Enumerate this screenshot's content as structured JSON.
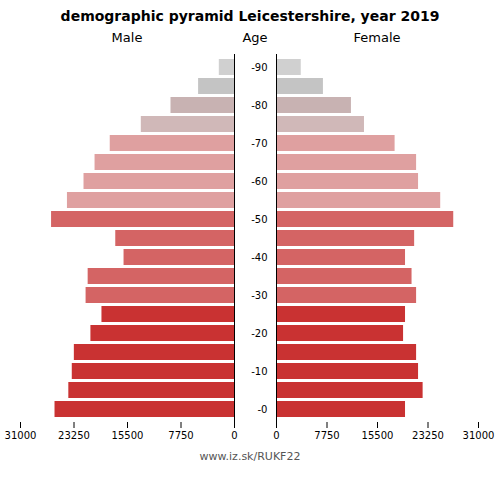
{
  "chart_data": {
    "type": "pyramid",
    "title": "demographic pyramid Leicestershire, year 2019",
    "ylabel": "Age",
    "categories": [
      "-0",
      null,
      "-10",
      null,
      "-20",
      null,
      "-30",
      null,
      "-40",
      null,
      "-50",
      null,
      "-60",
      null,
      "-70",
      null,
      "-80",
      null,
      "-90"
    ],
    "series": [
      {
        "name": "Male",
        "colors": [
          "#c93232",
          "#c93232",
          "#c93232",
          "#c93232",
          "#c93232",
          "#c93232",
          "#d46464",
          "#d46464",
          "#d46464",
          "#d46464",
          "#d46464",
          "#dfa0a0",
          "#dfa0a0",
          "#dfa0a0",
          "#dfa0a0",
          "#d0b8b8",
          "#c8b2b2",
          "#c4c4c4",
          "#d0d0d0"
        ],
        "values": [
          26000,
          24000,
          23500,
          23200,
          20800,
          19200,
          21500,
          21200,
          16000,
          17200,
          26500,
          24200,
          21800,
          20200,
          18000,
          13500,
          9200,
          5200,
          2200
        ]
      },
      {
        "name": "Female",
        "colors": [
          "#c93232",
          "#c93232",
          "#c93232",
          "#c93232",
          "#c93232",
          "#c93232",
          "#d46464",
          "#d46464",
          "#d46464",
          "#d46464",
          "#d46464",
          "#dfa0a0",
          "#dfa0a0",
          "#dfa0a0",
          "#dfa0a0",
          "#d0b8b8",
          "#c8b2b2",
          "#c4c4c4",
          "#d0d0d0"
        ],
        "values": [
          19800,
          22500,
          21800,
          21500,
          19500,
          19800,
          21500,
          20800,
          19800,
          21200,
          27200,
          25200,
          21800,
          21500,
          18200,
          13500,
          11500,
          7200,
          3800
        ]
      }
    ],
    "xlim": [
      0,
      31000
    ],
    "xticks": [
      0,
      7750,
      15500,
      23250,
      31000
    ],
    "annotations": [
      "www.iz.sk/RUKF22"
    ]
  }
}
